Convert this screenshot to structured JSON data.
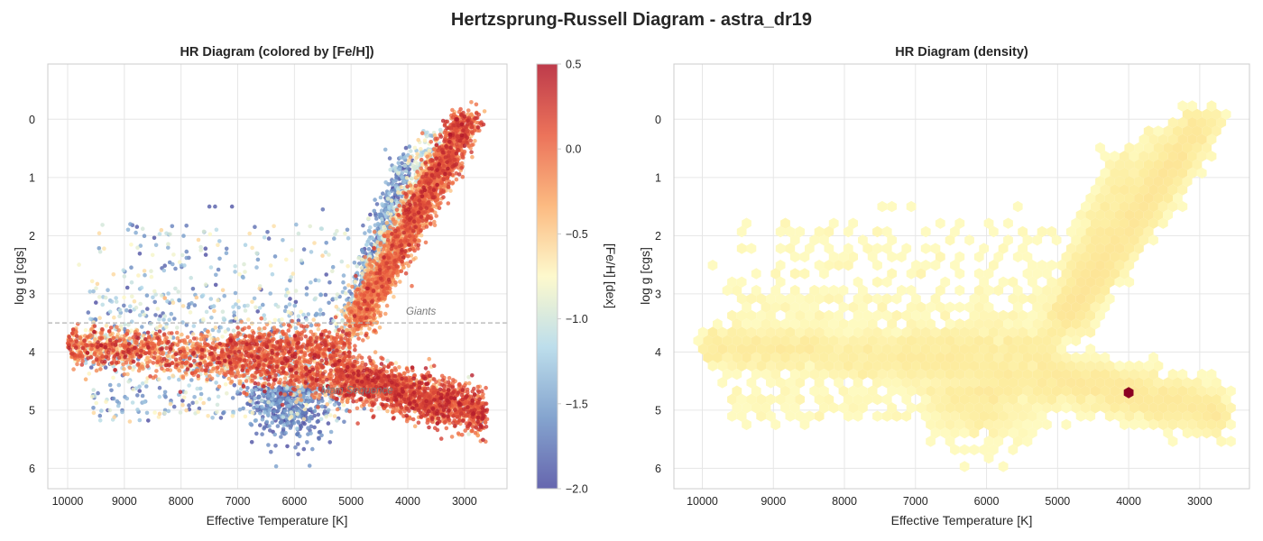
{
  "figure": {
    "title": "Hertzsprung-Russell Diagram - astra_dr19"
  },
  "chart_data": [
    {
      "type": "scatter",
      "title": "HR Diagram (colored by [Fe/H])",
      "xlabel": "Effective Temperature [K]",
      "ylabel": "log g [cgs]",
      "xlim": [
        10350,
        2250
      ],
      "ylim": [
        6.35,
        -0.95
      ],
      "x_inverted": true,
      "y_inverted": true,
      "xticks": [
        10000,
        9000,
        8000,
        7000,
        6000,
        5000,
        4000,
        3000
      ],
      "xtick_labels": [
        "10000",
        "9000",
        "8000",
        "7000",
        "6000",
        "5000",
        "4000",
        "3000"
      ],
      "yticks": [
        0,
        1,
        2,
        3,
        4,
        5,
        6
      ],
      "ytick_labels": [
        "0",
        "1",
        "2",
        "3",
        "4",
        "5",
        "6"
      ],
      "grid": true,
      "colorbar": {
        "label": "[Fe/H] [dex]",
        "range": [
          -2.0,
          0.5
        ],
        "ticks": [
          0.5,
          0.0,
          -0.5,
          -1.0,
          -1.5,
          -2.0
        ],
        "tick_labels": [
          "0.5",
          "0.0",
          "−0.5",
          "−1.0",
          "−1.5",
          "−2.0"
        ],
        "colormap": "RdYlBu_r",
        "colors": [
          "#4b4ba0",
          "#6f94c6",
          "#b1d8e8",
          "#fdf8c4",
          "#fbae6b",
          "#e85a3d",
          "#b2182b"
        ]
      },
      "reference_line": {
        "y": 3.5,
        "style": "dashed",
        "color": "#b0b0b0"
      },
      "annotations": [
        {
          "text": "Giants",
          "x": 4000,
          "y": 3.3
        },
        {
          "text": "Main Sequence",
          "x": 5500,
          "y": 4.65
        }
      ],
      "series": [
        {
          "component": "main-sequence",
          "x_range": [
            10000,
            2600
          ],
          "y_trend": [
            3.9,
            5.1
          ],
          "feh_trend": [
            -0.2,
            0.1
          ]
        },
        {
          "component": "metal-poor-turnoff",
          "x_range": [
            7000,
            5200
          ],
          "y_range": [
            4.0,
            6.0
          ],
          "feh_mean": -1.8
        },
        {
          "component": "red-giant-branch",
          "x_range": [
            5000,
            2900
          ],
          "y_trend": [
            3.6,
            0.0
          ],
          "feh_trend": [
            -0.4,
            0.3
          ]
        },
        {
          "component": "metal-poor-giants",
          "x_range": [
            5000,
            4000
          ],
          "y_trend": [
            3.3,
            0.8
          ],
          "feh_mean": -1.8
        },
        {
          "component": "scattered-field",
          "x_range": [
            9500,
            5000
          ],
          "y_range": [
            1.5,
            5.0
          ],
          "feh_range": [
            -2.0,
            0.3
          ]
        }
      ]
    },
    {
      "type": "heatmap",
      "subtype": "hexbin",
      "title": "HR Diagram (density)",
      "xlabel": "Effective Temperature [K]",
      "ylabel": "log g [cgs]",
      "xlim": [
        10400,
        2300
      ],
      "ylim": [
        6.35,
        -0.95
      ],
      "x_inverted": true,
      "y_inverted": true,
      "xticks": [
        10000,
        9000,
        8000,
        7000,
        6000,
        5000,
        4000,
        3000
      ],
      "xtick_labels": [
        "10000",
        "9000",
        "8000",
        "7000",
        "6000",
        "5000",
        "4000",
        "3000"
      ],
      "yticks": [
        0,
        1,
        2,
        3,
        4,
        5,
        6
      ],
      "ytick_labels": [
        "0",
        "1",
        "2",
        "3",
        "4",
        "5",
        "6"
      ],
      "grid": true,
      "colormap": "YlOrRd",
      "colors": [
        "#ffffcc",
        "#fdeda0",
        "#fcd98a",
        "#fbb55f",
        "#8b0022"
      ],
      "peak": {
        "x": 4000,
        "y": 4.7
      },
      "dense_regions": [
        {
          "x": 4700,
          "y": 2.45,
          "level": "medium"
        },
        {
          "x": 5800,
          "y": 4.2,
          "level": "medium"
        },
        {
          "x": 3500,
          "y": 4.65,
          "level": "low"
        }
      ]
    }
  ]
}
